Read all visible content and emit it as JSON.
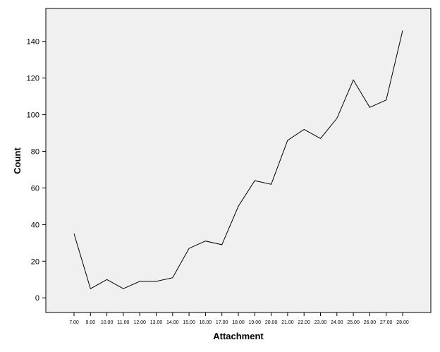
{
  "chart_data": {
    "type": "line",
    "title": "",
    "xlabel": "Attachment",
    "ylabel": "Count",
    "categories": [
      "7.00",
      "9.00",
      "10.00",
      "11.00",
      "12.00",
      "13.00",
      "14.00",
      "15.00",
      "16.00",
      "17.00",
      "18.00",
      "19.00",
      "20.00",
      "21.00",
      "22.00",
      "23.00",
      "24.00",
      "25.00",
      "26.00",
      "27.00",
      "28.00"
    ],
    "series": [
      {
        "values": [
          35,
          5,
          10,
          5,
          9,
          9,
          11,
          27,
          31,
          29,
          50,
          64,
          62,
          86,
          92,
          87,
          98,
          119,
          104,
          108,
          146
        ]
      }
    ],
    "yticks": [
      0,
      20,
      40,
      60,
      80,
      100,
      120,
      140
    ],
    "ylim": [
      -8,
      158
    ],
    "grid": false,
    "legend": "none",
    "colors": {
      "plot_bg": "#f0f0f0",
      "line": "#000000"
    }
  }
}
